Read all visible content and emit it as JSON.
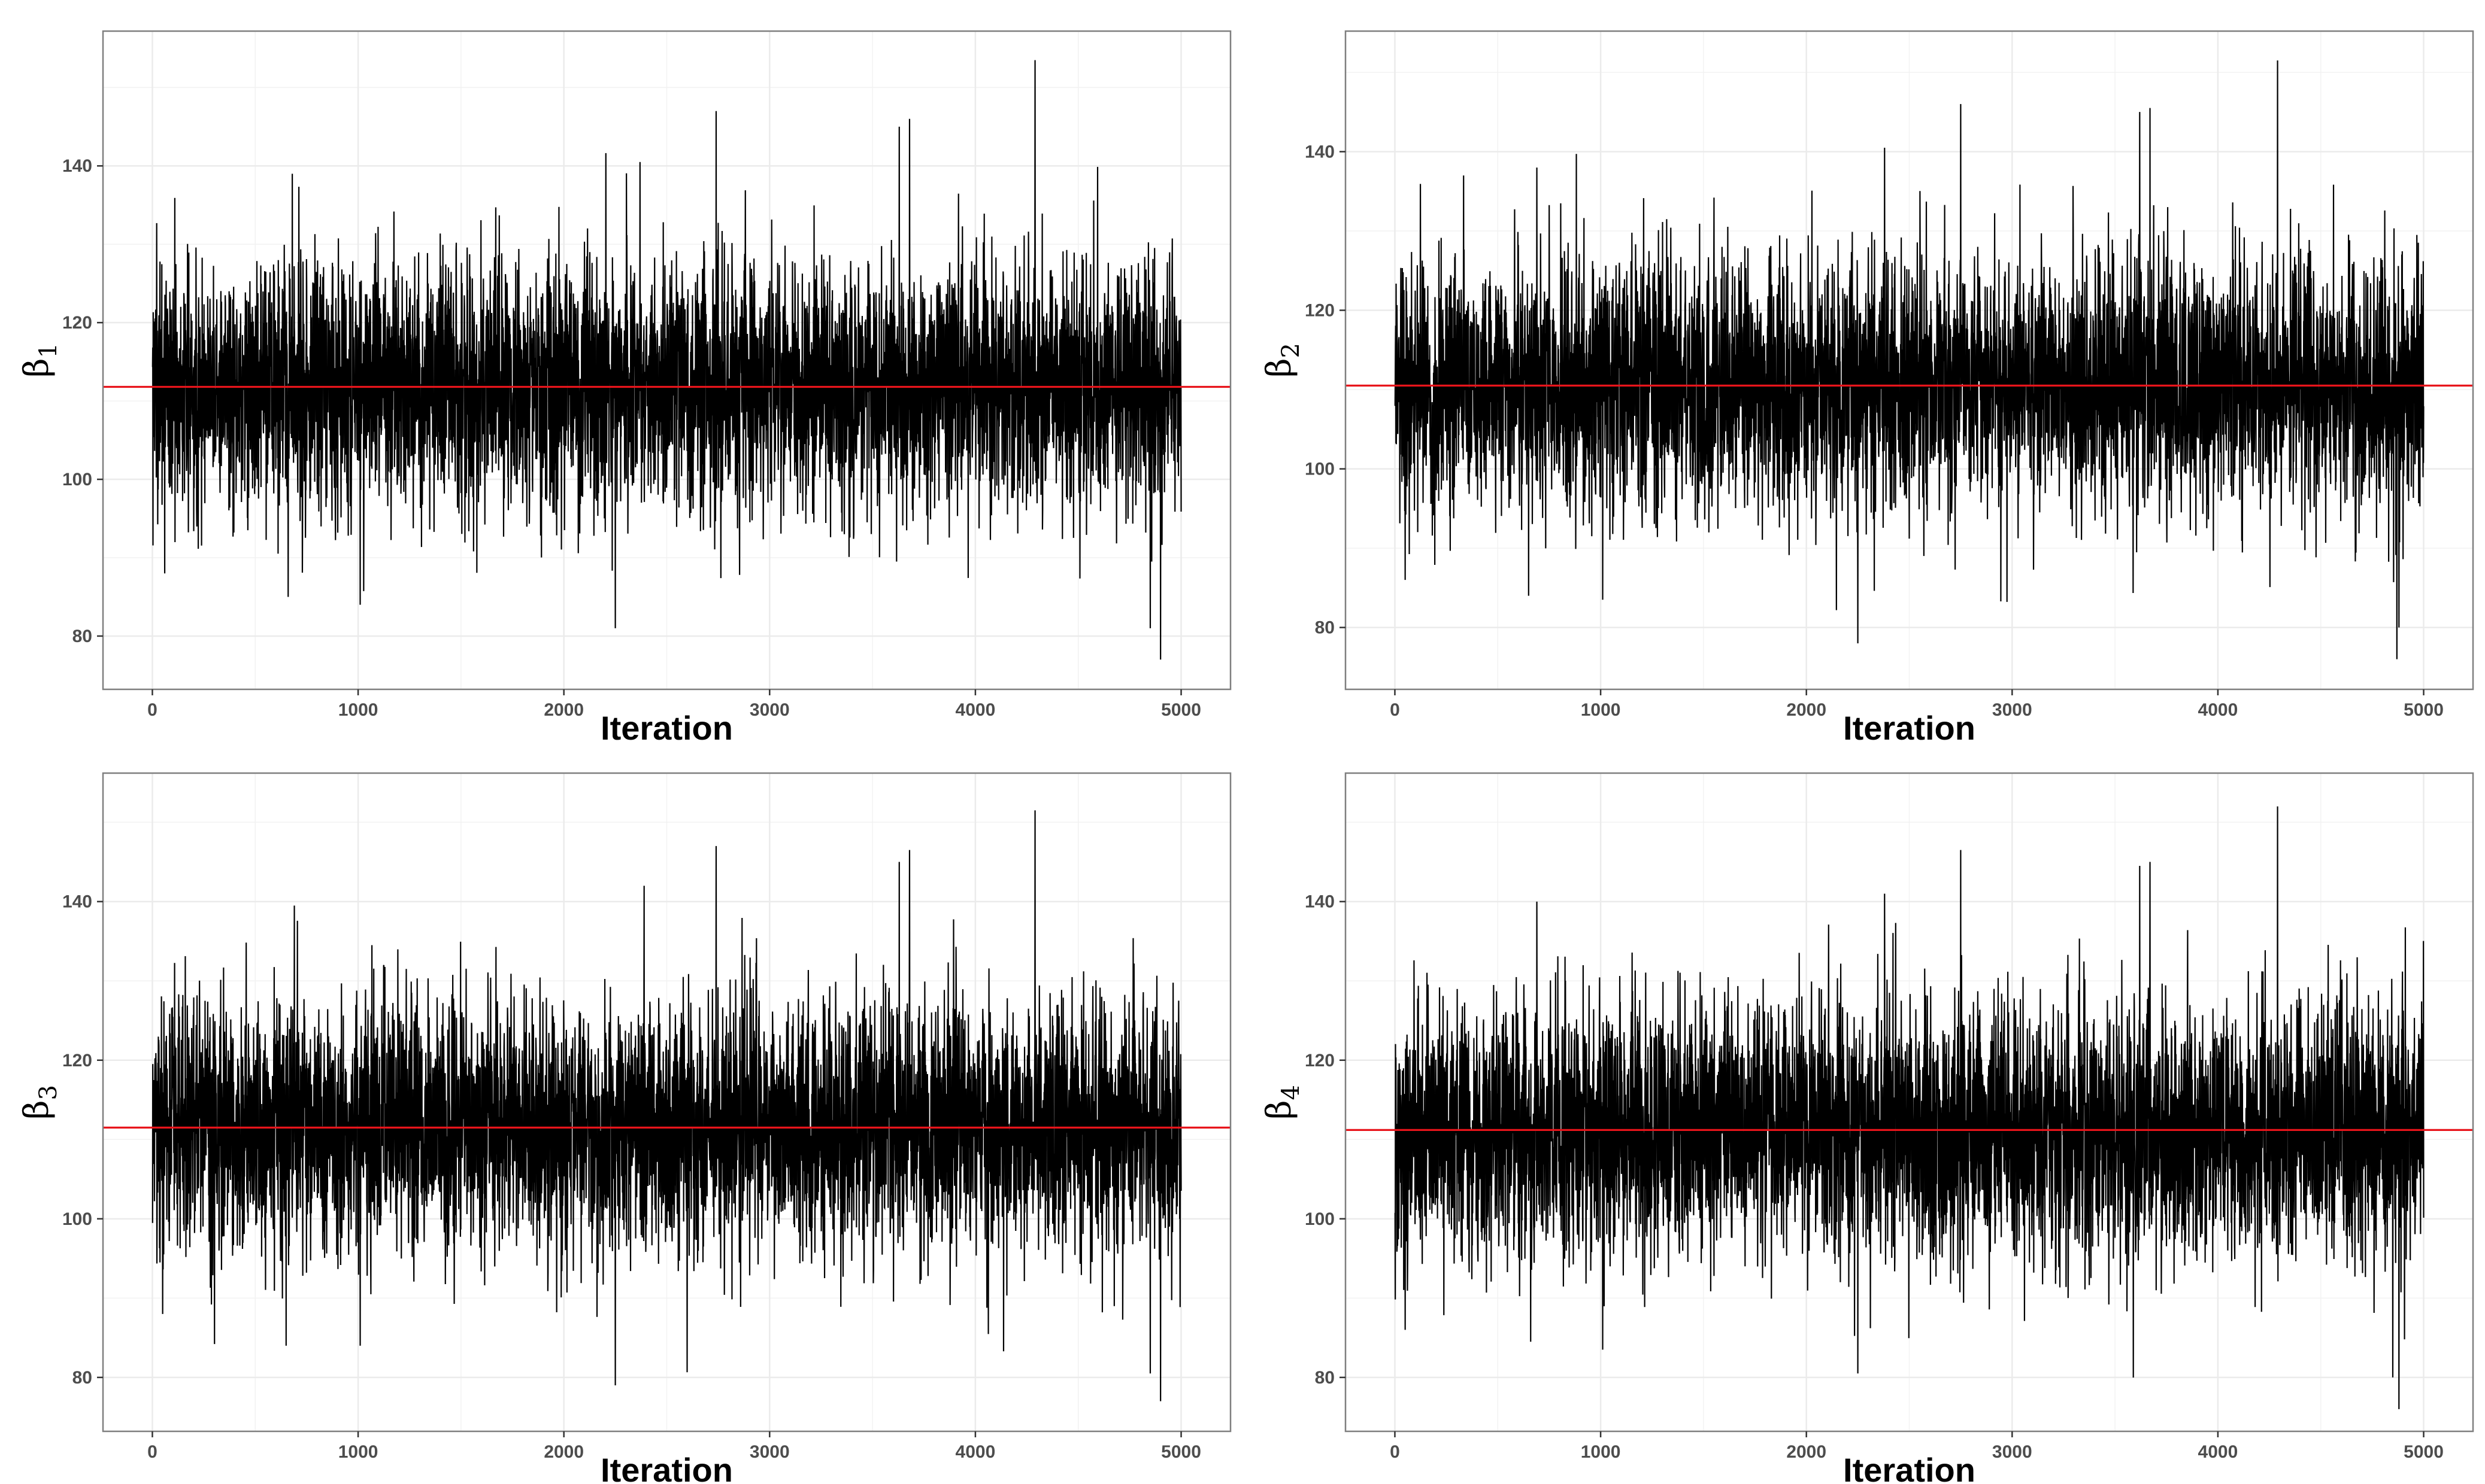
{
  "colors": {
    "trace": "#000000",
    "mean_line": "#e8141b",
    "grid": "#ebebeb",
    "border": "#7f7f7f",
    "background": "#ffffff"
  },
  "chart_data": [
    {
      "type": "line",
      "ylabel": "β",
      "ylabel_sub": "1",
      "xlabel": "Iteration",
      "xlim": [
        -240,
        5240
      ],
      "ylim": [
        73.2,
        157.2
      ],
      "xticks": [
        0,
        1000,
        2000,
        3000,
        4000,
        5000
      ],
      "yticks": [
        80,
        100,
        120,
        140
      ],
      "grid": true,
      "mean": 111.8,
      "n_iter": 5000,
      "trace_sd": 8,
      "trace_min": 77,
      "trace_max": 153.5,
      "spikes": [
        [
          60,
          88
        ],
        [
          660,
          85
        ],
        [
          680,
          139
        ],
        [
          1010,
          84
        ],
        [
          2250,
          81
        ],
        [
          2370,
          140.5
        ],
        [
          2740,
          147
        ],
        [
          3630,
          145
        ],
        [
          3680,
          146
        ],
        [
          4290,
          153.5
        ],
        [
          4850,
          81
        ],
        [
          4900,
          77
        ]
      ]
    },
    {
      "type": "line",
      "ylabel": "β",
      "ylabel_sub": "2",
      "xlabel": "Iteration",
      "xlim": [
        -240,
        5240
      ],
      "ylim": [
        72.2,
        155.2
      ],
      "xticks": [
        0,
        1000,
        2000,
        3000,
        4000,
        5000
      ],
      "yticks": [
        80,
        100,
        120,
        140
      ],
      "grid": true,
      "mean": 110.5,
      "n_iter": 5000,
      "trace_sd": 8,
      "trace_min": 76,
      "trace_max": 151.5,
      "spikes": [
        [
          50,
          86
        ],
        [
          650,
          84
        ],
        [
          690,
          138
        ],
        [
          1010,
          83.5
        ],
        [
          2250,
          78
        ],
        [
          2380,
          140.5
        ],
        [
          2750,
          146
        ],
        [
          3620,
          145
        ],
        [
          3670,
          145.5
        ],
        [
          4290,
          151.5
        ],
        [
          4870,
          76
        ],
        [
          4880,
          80
        ]
      ]
    },
    {
      "type": "line",
      "ylabel": "β",
      "ylabel_sub": "3",
      "xlabel": "Iteration",
      "xlim": [
        -240,
        5240
      ],
      "ylim": [
        73.2,
        156.2
      ],
      "xticks": [
        0,
        1000,
        2000,
        3000,
        4000,
        5000
      ],
      "yticks": [
        80,
        100,
        120,
        140
      ],
      "grid": true,
      "mean": 111.5,
      "n_iter": 5000,
      "trace_sd": 8,
      "trace_min": 77,
      "trace_max": 151.5,
      "spikes": [
        [
          50,
          88
        ],
        [
          650,
          84
        ],
        [
          690,
          139.5
        ],
        [
          1010,
          84
        ],
        [
          2250,
          79
        ],
        [
          2390,
          142
        ],
        [
          2740,
          147
        ],
        [
          3630,
          145
        ],
        [
          3680,
          146.5
        ],
        [
          4290,
          151.5
        ],
        [
          4850,
          80.5
        ],
        [
          4900,
          77
        ]
      ]
    },
    {
      "type": "line",
      "ylabel": "β",
      "ylabel_sub": "4",
      "xlabel": "Iteration",
      "xlim": [
        -240,
        5240
      ],
      "ylim": [
        73.2,
        156.2
      ],
      "xticks": [
        0,
        1000,
        2000,
        3000,
        4000,
        5000
      ],
      "yticks": [
        80,
        100,
        120,
        140
      ],
      "grid": true,
      "mean": 111.2,
      "n_iter": 5000,
      "trace_sd": 8,
      "trace_min": 76,
      "trace_max": 152,
      "spikes": [
        [
          50,
          86
        ],
        [
          660,
          84.5
        ],
        [
          690,
          140
        ],
        [
          1010,
          83.5
        ],
        [
          2250,
          80.5
        ],
        [
          2380,
          141
        ],
        [
          2750,
          146.5
        ],
        [
          3620,
          144.5
        ],
        [
          3670,
          145
        ],
        [
          4290,
          152
        ],
        [
          4850,
          80
        ],
        [
          4880,
          76
        ]
      ]
    }
  ]
}
